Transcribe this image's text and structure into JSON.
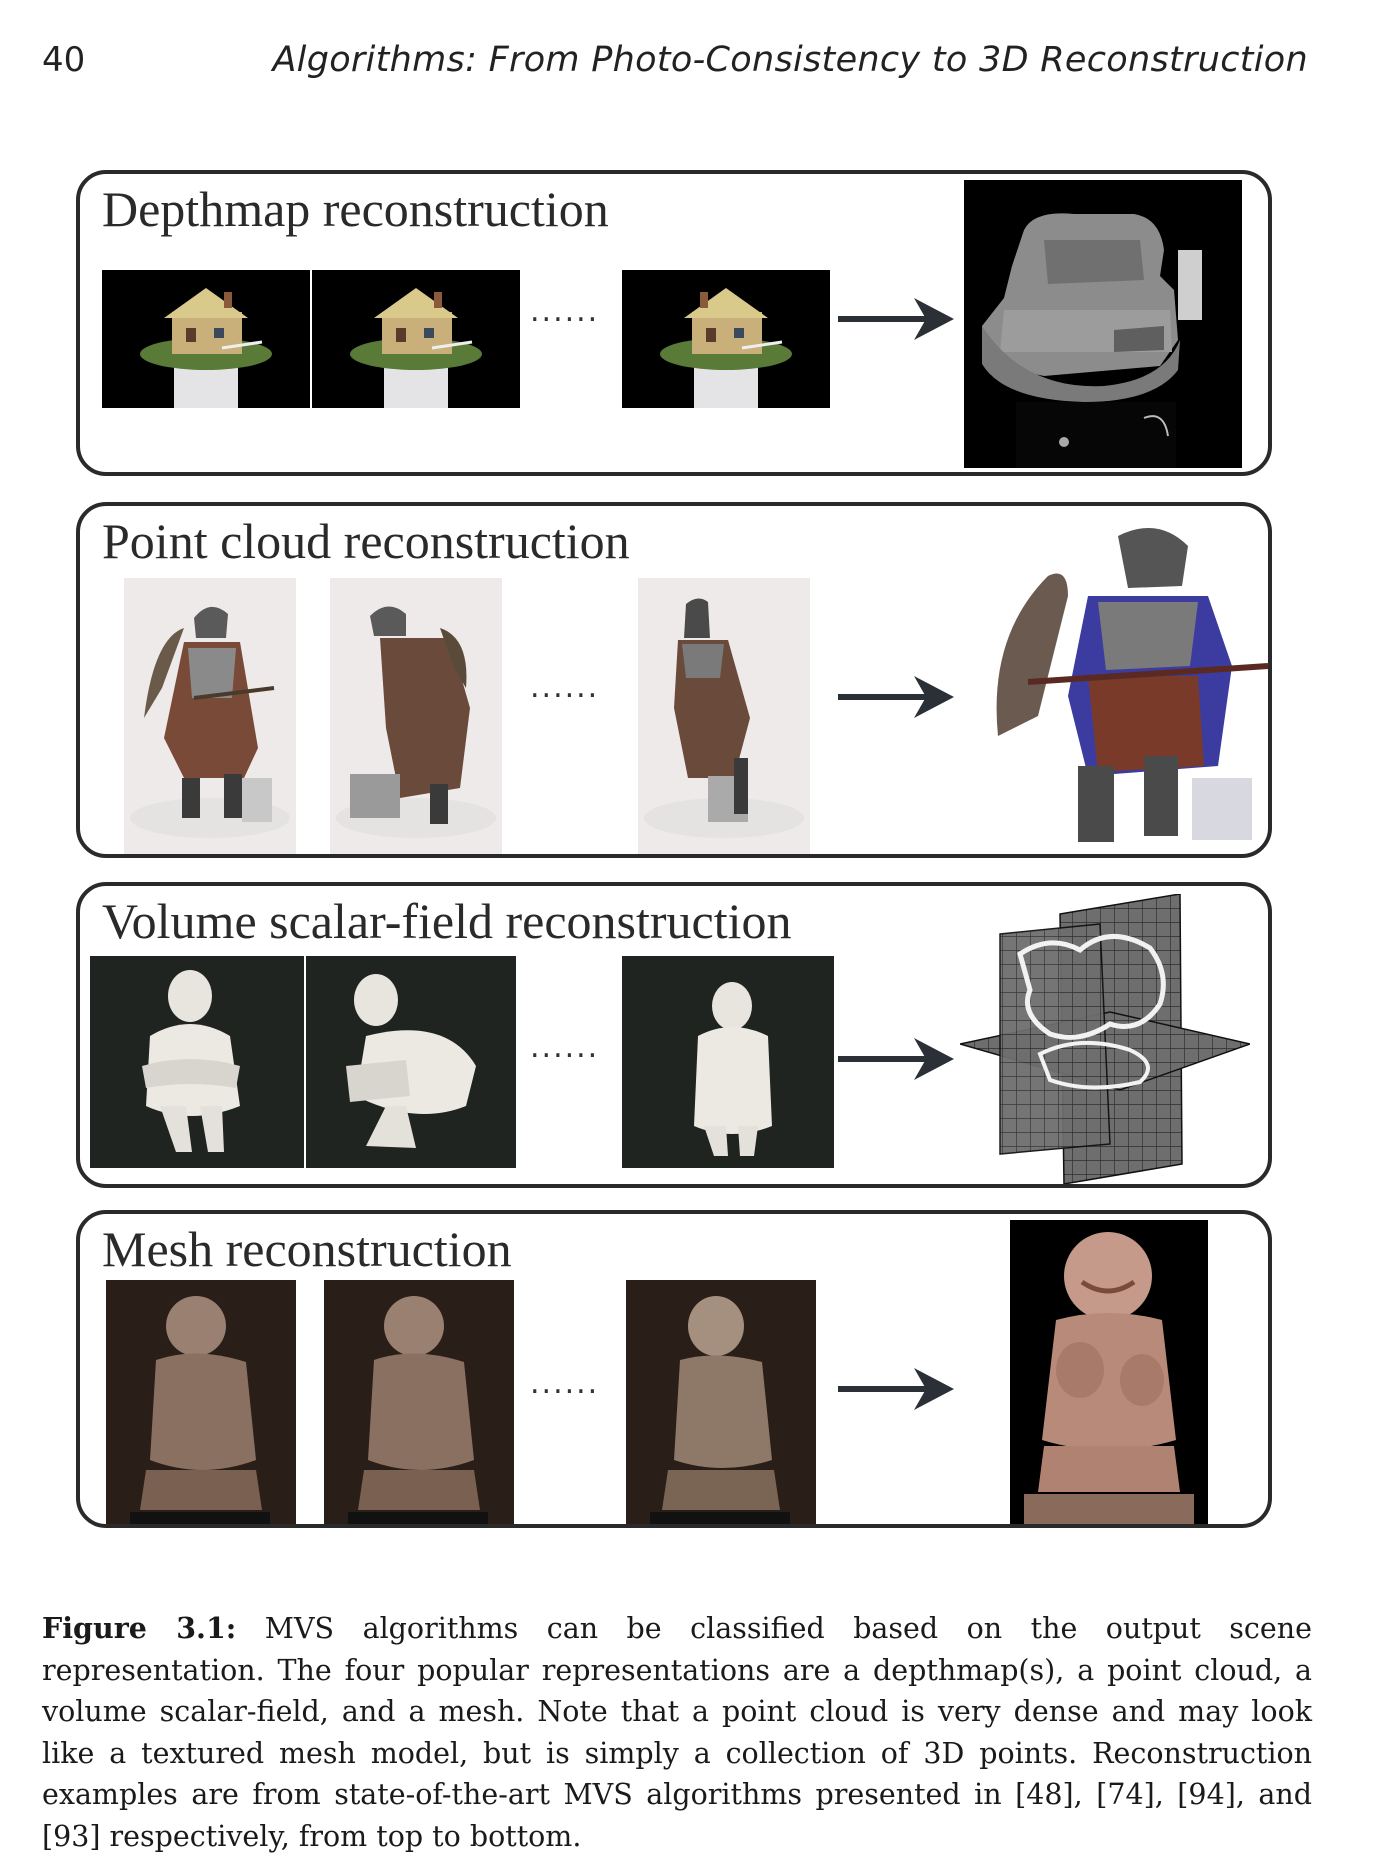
{
  "header": {
    "page_number": "40",
    "running_title": "Algorithms: From Photo-Consistency to 3D Reconstruction"
  },
  "panels": [
    {
      "title": "Depthmap reconstruction",
      "ellipsis": "......"
    },
    {
      "title": "Point cloud reconstruction",
      "ellipsis": "......"
    },
    {
      "title": "Volume scalar-field reconstruction",
      "ellipsis": "......"
    },
    {
      "title": "Mesh reconstruction",
      "ellipsis": "......"
    }
  ],
  "caption": {
    "label": "Figure 3.1:",
    "text": " MVS algorithms can be classified based on the output scene representation. The four popular representations are a depthmap(s), a point cloud, a volume scalar-field, and a mesh. Note that a point cloud is very dense and may look like a textured mesh model, but is simply a collection of 3D points. Reconstruction examples are from state-of-the-art MVS algorithms presented in [48], [74], [94], and [93] respectively, from top to bottom."
  },
  "colors": {
    "panel_border": "#2a2a2a",
    "arrow": "#2b2f36"
  }
}
